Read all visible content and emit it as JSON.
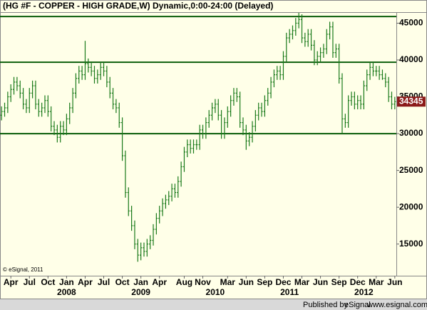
{
  "chart_data": {
    "type": "ohlc",
    "title": "(HG #F - COPPER - HIGH GRADE,W) Dynamic,0:00-24:00 (Delayed)",
    "copyright": "© eSignal, 2011",
    "footer_prefix": "Published by",
    "footer_brand": "eSignal",
    "footer_url": "www.esignal.com",
    "color": "#1a7a1a",
    "level_color": "#0b5e0b",
    "levels": [
      45900,
      39700,
      30000
    ],
    "last_price": 34345,
    "ylim": [
      10700,
      46500
    ],
    "yticks": [
      15000,
      20000,
      25000,
      30000,
      35000,
      40000,
      45000
    ],
    "categories": [
      null,
      null,
      null,
      "Apr",
      null,
      null,
      null,
      null,
      null,
      "Jul",
      null,
      null,
      null,
      null,
      null,
      "Oct",
      null,
      null,
      null,
      null,
      null,
      "Jan",
      null,
      null,
      null,
      null,
      null,
      "Apr",
      null,
      null,
      null,
      null,
      null,
      "Jul",
      null,
      null,
      null,
      null,
      null,
      "Oct",
      null,
      null,
      null,
      null,
      null,
      "Jan",
      null,
      null,
      null,
      null,
      null,
      "Apr",
      null,
      null,
      null,
      null,
      null,
      null,
      null,
      "Aug",
      null,
      null,
      null,
      null,
      null,
      "Nov",
      null,
      null,
      null,
      null,
      null,
      null,
      null,
      "Mar",
      null,
      null,
      null,
      null,
      null,
      "Jun",
      null,
      null,
      null,
      null,
      null,
      "Sep",
      null,
      null,
      null,
      null,
      null,
      "Dec",
      null,
      null,
      null,
      null,
      null,
      "Mar",
      null,
      null,
      null,
      null,
      null,
      "Jun",
      null,
      null,
      null,
      null,
      null,
      "Sep",
      null,
      null,
      null,
      null,
      null,
      "Dec",
      null,
      null,
      null,
      null,
      null,
      "Mar",
      null,
      null,
      null,
      null,
      null,
      "Jun"
    ],
    "year_labels": [
      null,
      null,
      null,
      null,
      null,
      null,
      null,
      null,
      null,
      null,
      null,
      null,
      null,
      null,
      null,
      null,
      null,
      null,
      null,
      null,
      null,
      "2008",
      null,
      null,
      null,
      null,
      null,
      null,
      null,
      null,
      null,
      null,
      null,
      null,
      null,
      null,
      null,
      null,
      null,
      null,
      null,
      null,
      null,
      null,
      null,
      "2009",
      null,
      null,
      null,
      null,
      null,
      null,
      null,
      null,
      null,
      null,
      null,
      null,
      null,
      null,
      null,
      null,
      null,
      null,
      null,
      null,
      null,
      null,
      null,
      "2010",
      null,
      null,
      null,
      null,
      null,
      null,
      null,
      null,
      null,
      null,
      null,
      null,
      null,
      null,
      null,
      null,
      null,
      null,
      null,
      null,
      null,
      null,
      null,
      "2011",
      null,
      null,
      null,
      null,
      null,
      null,
      null,
      null,
      null,
      null,
      null,
      null,
      null,
      null,
      null,
      null,
      null,
      null,
      null,
      null,
      null,
      null,
      null,
      "2012",
      null,
      null,
      null,
      null,
      null,
      null,
      null,
      null,
      null,
      null
    ],
    "open": [
      32500,
      33000,
      33500,
      35000,
      36000,
      37000,
      36500,
      35500,
      34000,
      33500,
      35500,
      36500,
      34000,
      33000,
      33500,
      34500,
      33000,
      31000,
      30500,
      29500,
      31000,
      30500,
      32000,
      33500,
      35500,
      37500,
      38500,
      38000,
      39500,
      39000,
      38500,
      37500,
      38000,
      39000,
      38500,
      37000,
      35500,
      34000,
      33500,
      31500,
      27000,
      22000,
      19500,
      17500,
      15000,
      13500,
      14500,
      14000,
      15000,
      15500,
      17000,
      18500,
      19500,
      20500,
      21000,
      21500,
      22500,
      22000,
      23500,
      25500,
      27500,
      28500,
      28000,
      28500,
      28500,
      30500,
      30000,
      31500,
      32500,
      33500,
      34000,
      32500,
      30000,
      31500,
      33000,
      34500,
      35500,
      35000,
      31500,
      30500,
      29000,
      29500,
      31000,
      32500,
      33500,
      33000,
      34500,
      35500,
      37000,
      38000,
      38500,
      38000,
      40500,
      43000,
      43500,
      44000,
      45000,
      45500,
      43000,
      42500,
      43500,
      42000,
      40000,
      40500,
      41000,
      41500,
      43500,
      44500,
      41000,
      41500,
      37500,
      32000,
      31500,
      34500,
      35000,
      34000,
      34500,
      34000,
      36500,
      38000,
      39000,
      38500,
      38500,
      38000,
      37500,
      37000,
      35000,
      34000
    ],
    "high": [
      33700,
      34200,
      35700,
      36700,
      37700,
      37700,
      37200,
      36200,
      34700,
      36200,
      37200,
      37200,
      34700,
      34200,
      35200,
      35200,
      33700,
      31700,
      31200,
      31700,
      31700,
      32700,
      34200,
      36200,
      38200,
      39200,
      39200,
      42600,
      40200,
      39700,
      39200,
      38700,
      39700,
      39700,
      39200,
      37700,
      36200,
      34700,
      34200,
      32200,
      27700,
      22700,
      20200,
      18200,
      15700,
      15200,
      15200,
      15700,
      16200,
      17700,
      19200,
      20200,
      21200,
      21700,
      22200,
      23200,
      23200,
      24200,
      26200,
      28200,
      29200,
      29200,
      29200,
      29200,
      31200,
      31200,
      32200,
      33200,
      34200,
      34700,
      34700,
      33200,
      32200,
      33700,
      35200,
      36200,
      36200,
      35700,
      32200,
      31200,
      30200,
      31700,
      33200,
      34200,
      34200,
      35200,
      36200,
      37700,
      38700,
      39200,
      39200,
      41200,
      43700,
      44200,
      44700,
      45700,
      46400,
      46200,
      43700,
      44200,
      44200,
      42700,
      41200,
      41700,
      42200,
      44200,
      45200,
      45200,
      42200,
      42200,
      38200,
      32700,
      35200,
      35700,
      35700,
      35200,
      35200,
      37200,
      38700,
      39700,
      39700,
      39200,
      39200,
      38700,
      38200,
      37700,
      35700,
      35000
    ],
    "low": [
      31800,
      32300,
      32800,
      34300,
      35300,
      35800,
      34800,
      33300,
      32800,
      32800,
      34800,
      33300,
      32300,
      32300,
      32800,
      32300,
      30300,
      29800,
      28800,
      28800,
      29800,
      29800,
      31300,
      32800,
      34800,
      36800,
      37300,
      37300,
      38300,
      37800,
      36800,
      36800,
      37300,
      37800,
      36300,
      34800,
      33300,
      32800,
      30800,
      26300,
      21300,
      18800,
      16800,
      14300,
      12600,
      12800,
      13300,
      13300,
      14300,
      14800,
      16300,
      17800,
      18800,
      19800,
      20300,
      20800,
      21300,
      21300,
      22800,
      24800,
      26800,
      27300,
      27300,
      27800,
      27800,
      29300,
      29300,
      30800,
      31800,
      32800,
      31800,
      29300,
      29300,
      30800,
      32300,
      33800,
      34300,
      30800,
      29800,
      27800,
      28300,
      28800,
      30300,
      31800,
      32300,
      32300,
      33800,
      34800,
      36300,
      37300,
      37300,
      37300,
      39800,
      42300,
      42800,
      43300,
      44300,
      42300,
      41800,
      41800,
      41300,
      39300,
      39300,
      39800,
      40300,
      40800,
      42800,
      40300,
      40300,
      36800,
      30000,
      30800,
      30800,
      33800,
      33300,
      33300,
      33300,
      33300,
      35800,
      37300,
      37800,
      37800,
      37300,
      37300,
      36300,
      34300,
      33300,
      33300
    ],
    "close": [
      33000,
      33500,
      35000,
      36000,
      37000,
      36500,
      35500,
      34000,
      33500,
      35500,
      36500,
      34000,
      33000,
      33500,
      34500,
      33000,
      31000,
      30500,
      29500,
      31000,
      30500,
      32000,
      33500,
      35500,
      37500,
      38500,
      38000,
      39500,
      39000,
      38500,
      37500,
      38000,
      39000,
      38500,
      37000,
      35500,
      34000,
      33500,
      31500,
      27000,
      22000,
      19500,
      17500,
      15000,
      13500,
      14500,
      14000,
      15000,
      15500,
      17000,
      18500,
      19500,
      20500,
      21000,
      21500,
      22500,
      22000,
      23500,
      25500,
      27500,
      28500,
      28000,
      28500,
      28500,
      30500,
      30000,
      31500,
      32500,
      33500,
      34000,
      32500,
      30000,
      31500,
      33000,
      34500,
      35500,
      35000,
      31500,
      30500,
      29000,
      29500,
      31000,
      32500,
      33500,
      33000,
      34500,
      35500,
      37000,
      38000,
      38500,
      38000,
      40500,
      43000,
      43500,
      44000,
      45000,
      45500,
      43000,
      42500,
      43500,
      42000,
      40000,
      40500,
      41000,
      41500,
      43500,
      44500,
      41000,
      41500,
      37500,
      32000,
      31500,
      34500,
      35000,
      34000,
      34500,
      34000,
      36500,
      38000,
      39000,
      38500,
      38500,
      38000,
      37500,
      37000,
      35000,
      34000,
      34345
    ]
  }
}
